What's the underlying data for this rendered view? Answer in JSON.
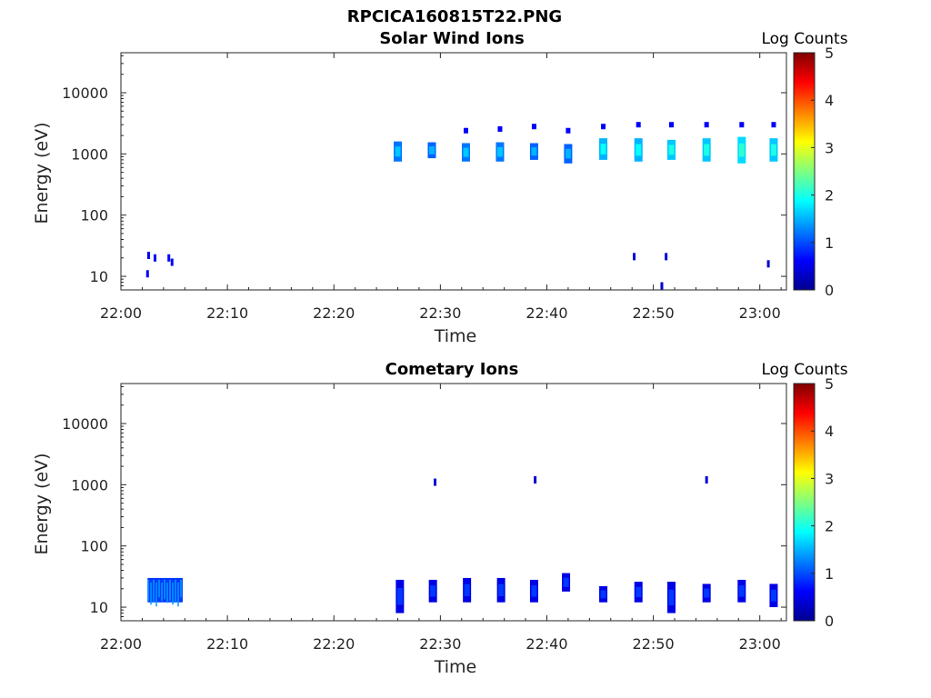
{
  "figure": {
    "title": "RPCICA160815T22.PNG"
  },
  "chart_data": [
    {
      "type": "heatmap",
      "title": "Solar Wind Ions",
      "xlabel": "Time",
      "ylabel": "Energy (eV)",
      "x_ticks": [
        "22:00",
        "22:10",
        "22:20",
        "22:30",
        "22:40",
        "22:50",
        "23:00"
      ],
      "y_ticks": [
        "10",
        "100",
        "1000",
        "10000"
      ],
      "y_scale": "log",
      "y_range": [
        6,
        45000
      ],
      "x_range_minutes": [
        0,
        62.5
      ],
      "colorbar": {
        "label": "Log Counts",
        "ticks": [
          "0",
          "1",
          "2",
          "3",
          "4",
          "5"
        ],
        "range": [
          0,
          5
        ],
        "colormap": "jet"
      },
      "features": [
        {
          "t": 26.0,
          "e_min": 750,
          "e_max": 1600,
          "level": 1.2
        },
        {
          "t": 29.2,
          "e_min": 850,
          "e_max": 1550,
          "level": 1.1
        },
        {
          "t": 32.4,
          "e_min": 750,
          "e_max": 1500,
          "level": 1.2,
          "cap_e": 2400
        },
        {
          "t": 35.6,
          "e_min": 750,
          "e_max": 1550,
          "level": 1.2,
          "cap_e": 2550
        },
        {
          "t": 38.8,
          "e_min": 800,
          "e_max": 1500,
          "level": 1.1,
          "cap_e": 2800
        },
        {
          "t": 42.0,
          "e_min": 700,
          "e_max": 1450,
          "level": 1.1,
          "cap_e": 2400
        },
        {
          "t": 45.3,
          "e_min": 800,
          "e_max": 1800,
          "level": 1.5,
          "cap_e": 2800
        },
        {
          "t": 48.6,
          "e_min": 750,
          "e_max": 1800,
          "level": 1.5,
          "cap_e": 3000
        },
        {
          "t": 51.7,
          "e_min": 800,
          "e_max": 1700,
          "level": 1.6,
          "cap_e": 3000
        },
        {
          "t": 55.0,
          "e_min": 750,
          "e_max": 1800,
          "level": 1.6,
          "cap_e": 3000
        },
        {
          "t": 58.3,
          "e_min": 700,
          "e_max": 1900,
          "level": 1.7,
          "cap_e": 3000
        },
        {
          "t": 61.3,
          "e_min": 750,
          "e_max": 1800,
          "level": 1.6,
          "cap_e": 3000
        }
      ],
      "sparse_points": [
        {
          "t": 2.5,
          "e": 11,
          "level": 0.6
        },
        {
          "t": 2.6,
          "e": 22,
          "level": 0.6
        },
        {
          "t": 3.2,
          "e": 20,
          "level": 0.6
        },
        {
          "t": 4.5,
          "e": 20,
          "level": 0.6
        },
        {
          "t": 4.8,
          "e": 17,
          "level": 0.6
        },
        {
          "t": 48.2,
          "e": 21,
          "level": 0.4
        },
        {
          "t": 51.2,
          "e": 21,
          "level": 0.4
        },
        {
          "t": 50.8,
          "e": 7,
          "level": 0.4
        },
        {
          "t": 60.8,
          "e": 16,
          "level": 0.4
        }
      ]
    },
    {
      "type": "heatmap",
      "title": "Cometary Ions",
      "xlabel": "Time",
      "ylabel": "Energy (eV)",
      "x_ticks": [
        "22:00",
        "22:10",
        "22:20",
        "22:30",
        "22:40",
        "22:50",
        "23:00"
      ],
      "y_ticks": [
        "10",
        "100",
        "1000",
        "10000"
      ],
      "y_scale": "log",
      "y_range": [
        6,
        45000
      ],
      "x_range_minutes": [
        0,
        62.5
      ],
      "colorbar": {
        "label": "Log Counts",
        "ticks": [
          "0",
          "1",
          "2",
          "3",
          "4",
          "5"
        ],
        "range": [
          0,
          5
        ],
        "colormap": "jet"
      },
      "features": [
        {
          "t_start": 2.5,
          "t_end": 5.8,
          "e_min": 12,
          "e_max": 30,
          "level": 0.9
        },
        {
          "t": 26.2,
          "e_min": 8,
          "e_max": 28,
          "level": 0.5
        },
        {
          "t": 29.3,
          "e_min": 12,
          "e_max": 28,
          "level": 0.5
        },
        {
          "t": 32.5,
          "e_min": 12,
          "e_max": 30,
          "level": 0.5
        },
        {
          "t": 35.7,
          "e_min": 12,
          "e_max": 30,
          "level": 0.5
        },
        {
          "t": 38.8,
          "e_min": 12,
          "e_max": 28,
          "level": 0.5
        },
        {
          "t": 41.8,
          "e_min": 18,
          "e_max": 36,
          "level": 0.5
        },
        {
          "t": 45.3,
          "e_min": 12,
          "e_max": 22,
          "level": 0.5
        },
        {
          "t": 48.6,
          "e_min": 12,
          "e_max": 26,
          "level": 0.5
        },
        {
          "t": 51.7,
          "e_min": 8,
          "e_max": 26,
          "level": 0.5
        },
        {
          "t": 55.0,
          "e_min": 12,
          "e_max": 24,
          "level": 0.5
        },
        {
          "t": 58.3,
          "e_min": 12,
          "e_max": 28,
          "level": 0.5
        },
        {
          "t": 61.3,
          "e_min": 10,
          "e_max": 24,
          "level": 0.5
        }
      ],
      "sparse_points": [
        {
          "t": 29.5,
          "e": 1100,
          "level": 0.4
        },
        {
          "t": 38.9,
          "e": 1200,
          "level": 0.4
        },
        {
          "t": 55.0,
          "e": 1200,
          "level": 0.4
        }
      ]
    }
  ]
}
